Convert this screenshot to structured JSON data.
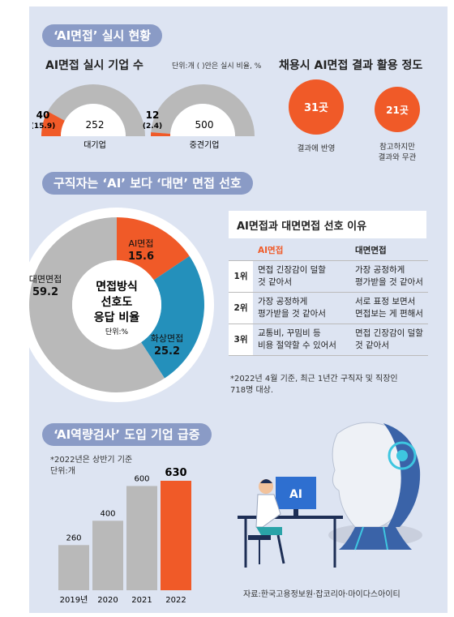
{
  "section1": {
    "title": "‘AI면접’ 실시 현황",
    "left": {
      "subtitle": "AI면접 실시 기업 수",
      "unit": "단위:개 ( )안은 실시 비율, %",
      "gauges": [
        {
          "name": "대기업",
          "ai_count": "40",
          "ai_rate": "(15.9)",
          "other": "252",
          "ai_fraction": 0.159
        },
        {
          "name": "중견기업",
          "ai_count": "12",
          "ai_rate": "(2.4)",
          "other": "500",
          "ai_fraction": 0.024
        }
      ]
    },
    "right": {
      "subtitle": "채용시 AI면접 결과 활용 정도",
      "items": [
        {
          "value": "31곳",
          "label": "결과에 반영"
        },
        {
          "value": "21곳",
          "label_line1": "참고하지만",
          "label_line2": "결과와 무관"
        }
      ]
    }
  },
  "section2": {
    "title": "구직자는 ‘AI’ 보다 ‘대면’ 면접 선호",
    "center_line1": "면접방식",
    "center_line2": "선호도",
    "center_line3": "응답 비율",
    "unit": "단위:%",
    "slices": [
      {
        "label": "AI면접",
        "value": "15.6",
        "color": "#f05a28"
      },
      {
        "label": "화상면접",
        "value": "25.2",
        "color": "#2490bb"
      },
      {
        "label": "대면면접",
        "value": "59.2",
        "color": "#b9b9b9"
      }
    ],
    "table": {
      "title": "AI면접과 대면면접 선호 이유",
      "headers": [
        "AI면접",
        "대면면접"
      ],
      "rows": [
        {
          "rank": "1위",
          "ai_line1": "면접 긴장감이 덜할",
          "ai_line2": "것 같아서",
          "face_line1": "가장 공정하게",
          "face_line2": "평가받을 것 같아서"
        },
        {
          "rank": "2위",
          "ai_line1": "가장 공정하게",
          "ai_line2": "평가받을 것 같아서",
          "face_line1": "서로 표정 보면서",
          "face_line2": "면접보는 게 편해서"
        },
        {
          "rank": "3위",
          "ai_line1": "교통비, 꾸밈비 등",
          "ai_line2": "비용 절약할 수 있어서",
          "face_line1": "면접 긴장감이 덜할",
          "face_line2": "것 같아서"
        }
      ]
    },
    "note_line1": "*2022년 4월 기준, 최근 1년간 구직자 및 직장인",
    "note_line2": "718명 대상."
  },
  "section3": {
    "title": "‘AI역량검사’ 도입 기업 급증",
    "note": "*2022년은 상반기 기준",
    "unit": "단위:개",
    "illustration_label": "AI",
    "source": "자료:한국고용정보원·잡코리아·마이다스아이티"
  },
  "colors": {
    "accent": "#f05a28",
    "blue": "#2490bb",
    "gray": "#b9b9b9",
    "panel": "#dde4f2",
    "pill": "#8a9bc6"
  },
  "chart_data": [
    {
      "type": "bar",
      "title": "‘AI역량검사’ 도입 기업 급증",
      "categories": [
        "2019년",
        "2020",
        "2021",
        "2022"
      ],
      "values": [
        260,
        400,
        600,
        630
      ],
      "labels": [
        "260",
        "400",
        "600",
        "630"
      ],
      "ylim": [
        0,
        700
      ],
      "highlight_index": 3
    },
    {
      "type": "pie",
      "title": "면접방식 선호도 응답 비율",
      "categories": [
        "AI면접",
        "화상면접",
        "대면면접"
      ],
      "values": [
        15.6,
        25.2,
        59.2
      ]
    }
  ]
}
